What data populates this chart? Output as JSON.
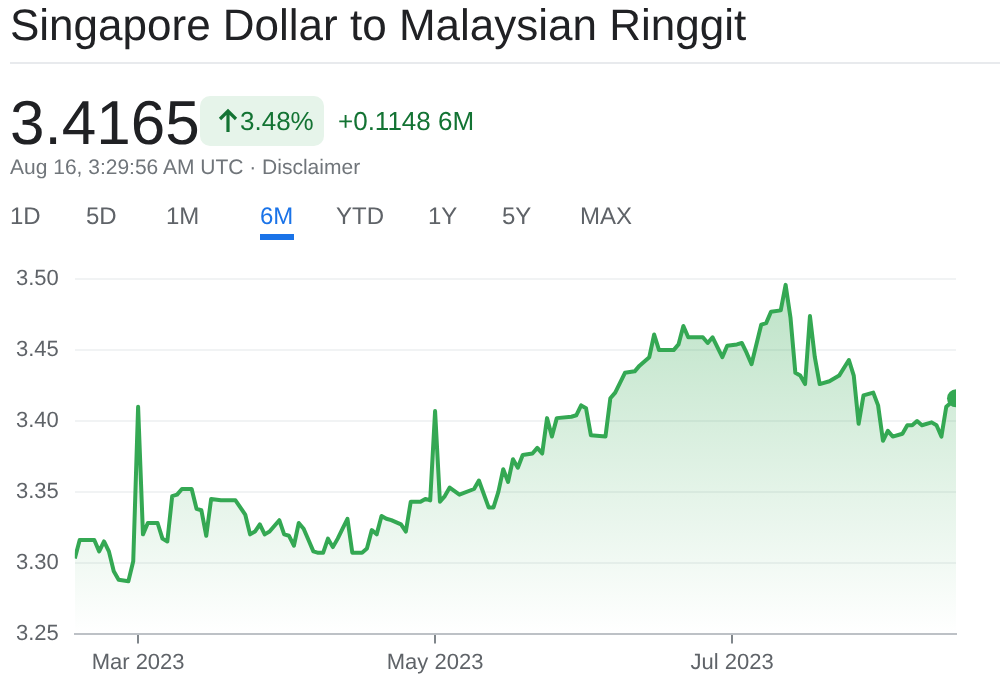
{
  "chart_data": {
    "type": "area",
    "title": "Singapore Dollar to Malaysian Ringgit",
    "subtitle": "3.4165",
    "annotations": [
      "3.48%",
      "+0.1148 6M",
      "Aug 16, 3:29:56 AM UTC · Disclaimer",
      "1D",
      "5D",
      "1M",
      "6M",
      "YTD",
      "1Y",
      "5Y",
      "MAX"
    ],
    "x": [
      "2023-02-16",
      "2023-02-17",
      "2023-02-20",
      "2023-02-21",
      "2023-02-22",
      "2023-02-23",
      "2023-02-24",
      "2023-02-25",
      "2023-02-27",
      "2023-02-28",
      "2023-03-01",
      "2023-03-02",
      "2023-03-03",
      "2023-03-05",
      "2023-03-06",
      "2023-03-07",
      "2023-03-08",
      "2023-03-09",
      "2023-03-10",
      "2023-03-12",
      "2023-03-13",
      "2023-03-14",
      "2023-03-15",
      "2023-03-16",
      "2023-03-18",
      "2023-03-21",
      "2023-03-23",
      "2023-03-24",
      "2023-03-25",
      "2023-03-26",
      "2023-03-27",
      "2023-03-28",
      "2023-03-30",
      "2023-03-31",
      "2023-04-01",
      "2023-04-02",
      "2023-04-03",
      "2023-04-04",
      "2023-04-05",
      "2023-04-06",
      "2023-04-07",
      "2023-04-08",
      "2023-04-09",
      "2023-04-10",
      "2023-04-11",
      "2023-04-12",
      "2023-04-13",
      "2023-04-14",
      "2023-04-16",
      "2023-04-17",
      "2023-04-18",
      "2023-04-19",
      "2023-04-20",
      "2023-04-21",
      "2023-04-22",
      "2023-04-24",
      "2023-04-25",
      "2023-04-26",
      "2023-04-28",
      "2023-04-29",
      "2023-04-30",
      "2023-05-01",
      "2023-05-02",
      "2023-05-03",
      "2023-05-04",
      "2023-05-06",
      "2023-05-09",
      "2023-05-10",
      "2023-05-12",
      "2023-05-13",
      "2023-05-14",
      "2023-05-15",
      "2023-05-16",
      "2023-05-17",
      "2023-05-18",
      "2023-05-19",
      "2023-05-21",
      "2023-05-22",
      "2023-05-23",
      "2023-05-24",
      "2023-05-25",
      "2023-05-26",
      "2023-05-29",
      "2023-05-30",
      "2023-05-31",
      "2023-06-01",
      "2023-06-02",
      "2023-06-05",
      "2023-06-06",
      "2023-06-07",
      "2023-06-09",
      "2023-06-11",
      "2023-06-12",
      "2023-06-14",
      "2023-06-15",
      "2023-06-16",
      "2023-06-19",
      "2023-06-20",
      "2023-06-21",
      "2023-06-22",
      "2023-06-25",
      "2023-06-26",
      "2023-06-27",
      "2023-06-29",
      "2023-06-30",
      "2023-07-02",
      "2023-07-03",
      "2023-07-04",
      "2023-07-05",
      "2023-07-07",
      "2023-07-08",
      "2023-07-09",
      "2023-07-11",
      "2023-07-12",
      "2023-07-13",
      "2023-07-14",
      "2023-07-15",
      "2023-07-16",
      "2023-07-17",
      "2023-07-18",
      "2023-07-19",
      "2023-07-21",
      "2023-07-23",
      "2023-07-25",
      "2023-07-26",
      "2023-07-27",
      "2023-07-28",
      "2023-07-30",
      "2023-07-31",
      "2023-08-01",
      "2023-08-02",
      "2023-08-03",
      "2023-08-05",
      "2023-08-06",
      "2023-08-07",
      "2023-08-08",
      "2023-08-09",
      "2023-08-11",
      "2023-08-12",
      "2023-08-13",
      "2023-08-14",
      "2023-08-16"
    ],
    "series": [
      {
        "color": "#34a853",
        "values": [
          3.303,
          3.316,
          3.316,
          3.308,
          3.315,
          3.308,
          3.294,
          3.288,
          3.287,
          3.301,
          3.41,
          3.32,
          3.328,
          3.328,
          3.317,
          3.315,
          3.347,
          3.348,
          3.352,
          3.352,
          3.338,
          3.337,
          3.319,
          3.345,
          3.344,
          3.344,
          3.334,
          3.32,
          3.322,
          3.327,
          3.32,
          3.322,
          3.33,
          3.32,
          3.319,
          3.312,
          3.328,
          3.324,
          3.316,
          3.308,
          3.307,
          3.307,
          3.317,
          3.311,
          3.317,
          3.324,
          3.331,
          3.307,
          3.307,
          3.31,
          3.323,
          3.32,
          3.333,
          3.331,
          3.33,
          3.327,
          3.322,
          3.343,
          3.343,
          3.345,
          3.344,
          3.407,
          3.343,
          3.347,
          3.353,
          3.348,
          3.352,
          3.358,
          3.339,
          3.339,
          3.35,
          3.366,
          3.357,
          3.373,
          3.367,
          3.376,
          3.377,
          3.381,
          3.377,
          3.402,
          3.389,
          3.402,
          3.403,
          3.404,
          3.411,
          3.409,
          3.39,
          3.389,
          3.416,
          3.42,
          3.434,
          3.435,
          3.439,
          3.445,
          3.461,
          3.45,
          3.45,
          3.454,
          3.467,
          3.459,
          3.459,
          3.455,
          3.459,
          3.445,
          3.453,
          3.454,
          3.455,
          3.448,
          3.44,
          3.468,
          3.469,
          3.477,
          3.478,
          3.496,
          3.473,
          3.434,
          3.432,
          3.426,
          3.474,
          3.445,
          3.426,
          3.428,
          3.432,
          3.443,
          3.432,
          3.398,
          3.418,
          3.42,
          3.411,
          3.386,
          3.393,
          3.389,
          3.391,
          3.397,
          3.397,
          3.4,
          3.397,
          3.399,
          3.397,
          3.389,
          3.41,
          3.416
        ]
      }
    ],
    "xlim": [
      "2023-02-16",
      "2023-08-16"
    ],
    "xticks": [
      {
        "value": "2023-03-01",
        "label": "Mar 2023"
      },
      {
        "value": "2023-05-01",
        "label": "May 2023"
      },
      {
        "value": "2023-07-01",
        "label": "Jul 2023"
      }
    ],
    "ylim": [
      3.25,
      3.5
    ],
    "yticks": [
      3.25,
      {
        "value": 3.3,
        "label": "3.30"
      },
      3.35,
      {
        "value": 3.4,
        "label": "3.40"
      },
      3.45,
      {
        "value": 3.5,
        "label": "3.50"
      }
    ],
    "grid": "y",
    "marker": "none",
    "line_style": "solid"
  }
}
